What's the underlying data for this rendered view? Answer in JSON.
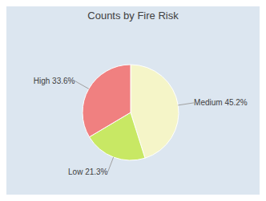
{
  "chart_data": {
    "type": "pie",
    "title": "Counts by Fire Risk",
    "categories": [
      "Medium 45.2%",
      "Low 21.3%",
      "High 33.6%"
    ],
    "values": [
      45.2,
      21.3,
      33.6
    ],
    "colors": [
      "#f5f5c8",
      "#c8e864",
      "#f08080"
    ]
  }
}
